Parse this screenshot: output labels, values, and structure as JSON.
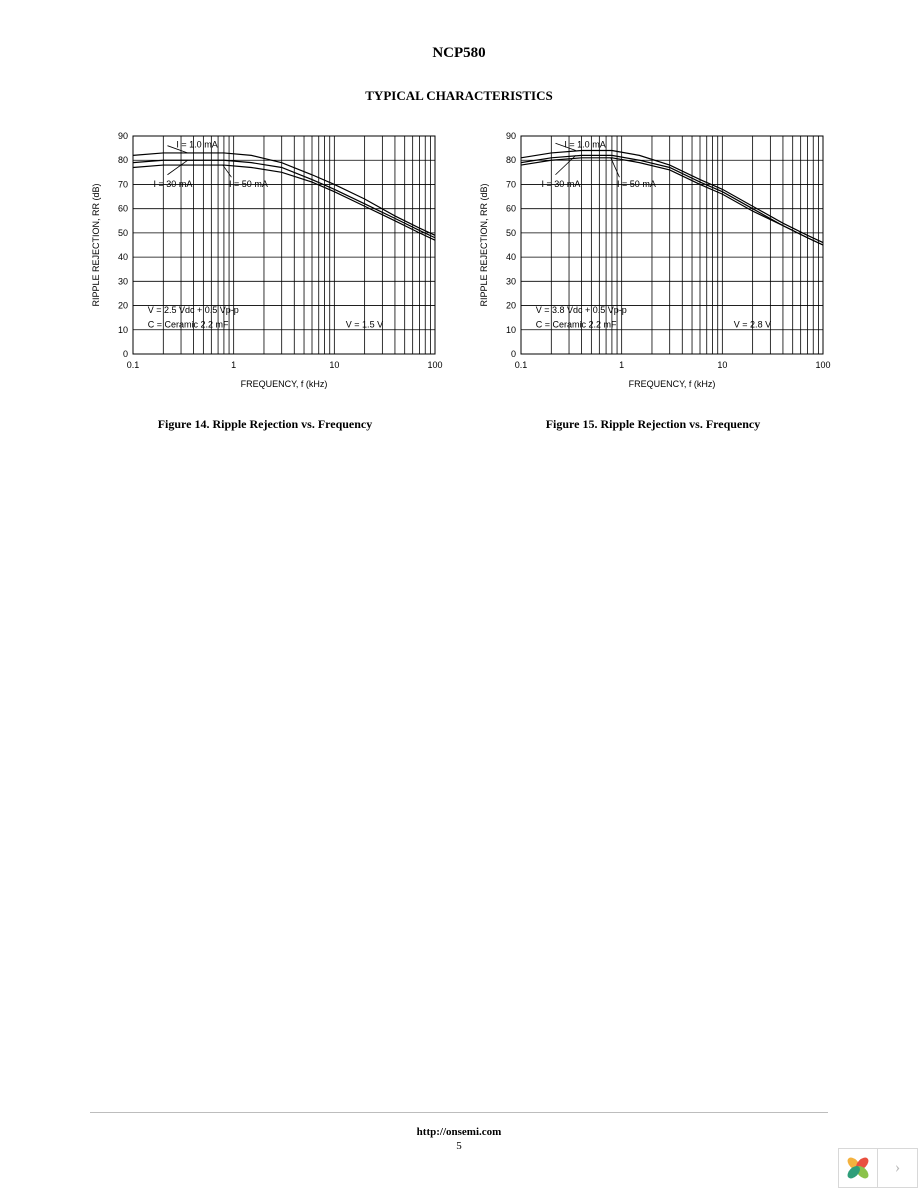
{
  "doc_title": "NCP580",
  "section_title": "TYPICAL CHARACTERISTICS",
  "footer_url": "http://onsemi.com",
  "page_number": "5",
  "chart_common": {
    "y_label": "RIPPLE REJECTION, RR (dB)",
    "x_label": "FREQUENCY, f (kHz)",
    "y_min": 0,
    "y_max": 90,
    "y_step": 10,
    "x_ticks": [
      0.1,
      1,
      10,
      100
    ],
    "x_tick_labels": [
      "0.1",
      "1",
      "10",
      "100"
    ],
    "x_log_minors": [
      2,
      3,
      4,
      5,
      6,
      7,
      8,
      9
    ],
    "axis_color": "#000000",
    "grid_color": "#000000",
    "line_color": "#000000",
    "grid_stroke": 0.8,
    "border_stroke": 1.0,
    "curve_stroke": 1.2,
    "text_color": "#000000",
    "tick_fontsize": 9,
    "axis_label_fontsize": 9,
    "annot_fontsize": 9
  },
  "charts": [
    {
      "caption": "Figure 14. Ripple Rejection vs. Frequency",
      "annot_i1": "I      = 1.0 mA",
      "annot_i2": "I      = 30 mA",
      "annot_i3": "I      = 50 mA",
      "annot_vin": "V     = 2.5  Vdc + 0.5  Vp-p",
      "annot_cout": "C      = Ceramic 2.2         mF",
      "annot_vout": "V       = 1.5  V",
      "series": [
        {
          "name": "1.0mA",
          "pts": [
            [
              0.1,
              82
            ],
            [
              0.2,
              83
            ],
            [
              0.4,
              83
            ],
            [
              0.8,
              83
            ],
            [
              1.5,
              82
            ],
            [
              3,
              79
            ],
            [
              6,
              74
            ],
            [
              10,
              70
            ],
            [
              20,
              64
            ],
            [
              40,
              57
            ],
            [
              70,
              52
            ],
            [
              100,
              49
            ]
          ]
        },
        {
          "name": "30mA",
          "pts": [
            [
              0.1,
              79
            ],
            [
              0.2,
              80
            ],
            [
              0.4,
              80
            ],
            [
              0.8,
              80
            ],
            [
              1.5,
              79
            ],
            [
              3,
              77
            ],
            [
              6,
              72
            ],
            [
              10,
              68
            ],
            [
              20,
              62
            ],
            [
              40,
              56
            ],
            [
              70,
              51
            ],
            [
              100,
              48
            ]
          ]
        },
        {
          "name": "50mA",
          "pts": [
            [
              0.1,
              77
            ],
            [
              0.2,
              78
            ],
            [
              0.4,
              78
            ],
            [
              0.8,
              78
            ],
            [
              1.5,
              77
            ],
            [
              3,
              75
            ],
            [
              6,
              71
            ],
            [
              10,
              67
            ],
            [
              20,
              61
            ],
            [
              40,
              55
            ],
            [
              70,
              50
            ],
            [
              100,
              47
            ]
          ]
        }
      ],
      "leaders": [
        {
          "from": [
            0.35,
            83
          ],
          "to": [
            0.22,
            86
          ],
          "label_anchor": "start"
        },
        {
          "from": [
            0.35,
            80
          ],
          "to": [
            0.22,
            74
          ],
          "label_anchor": "start"
        },
        {
          "from": [
            0.78,
            78
          ],
          "to": [
            0.95,
            73
          ],
          "label_anchor": "start"
        }
      ]
    },
    {
      "caption": "Figure 15. Ripple Rejection vs. Frequency",
      "annot_i1": "I      = 1.0 mA",
      "annot_i2": "I      = 30 mA",
      "annot_i3": "I      = 50 mA",
      "annot_vin": "V     = 3.8  Vdc + 0.5  Vp-p",
      "annot_cout": "C      = Ceramic 2.2         mF",
      "annot_vout": "V       = 2.8  V",
      "series": [
        {
          "name": "1.0mA",
          "pts": [
            [
              0.1,
              81
            ],
            [
              0.2,
              83
            ],
            [
              0.4,
              84
            ],
            [
              0.8,
              84
            ],
            [
              1.5,
              82
            ],
            [
              3,
              78
            ],
            [
              6,
              72
            ],
            [
              10,
              68
            ],
            [
              20,
              61
            ],
            [
              40,
              54
            ],
            [
              70,
              49
            ],
            [
              100,
              46
            ]
          ]
        },
        {
          "name": "30mA",
          "pts": [
            [
              0.1,
              79
            ],
            [
              0.2,
              81
            ],
            [
              0.4,
              82
            ],
            [
              0.8,
              82
            ],
            [
              1.5,
              80
            ],
            [
              3,
              77
            ],
            [
              6,
              71
            ],
            [
              10,
              67
            ],
            [
              20,
              60
            ],
            [
              40,
              53
            ],
            [
              70,
              48
            ],
            [
              100,
              45
            ]
          ]
        },
        {
          "name": "50mA",
          "pts": [
            [
              0.1,
              78
            ],
            [
              0.2,
              80
            ],
            [
              0.4,
              81
            ],
            [
              0.8,
              81
            ],
            [
              1.5,
              79
            ],
            [
              3,
              76
            ],
            [
              6,
              70
            ],
            [
              10,
              66
            ],
            [
              20,
              59
            ],
            [
              40,
              53
            ],
            [
              70,
              48
            ],
            [
              100,
              45
            ]
          ]
        }
      ],
      "leaders": [
        {
          "from": [
            0.35,
            84
          ],
          "to": [
            0.22,
            87
          ],
          "label_anchor": "start"
        },
        {
          "from": [
            0.35,
            82
          ],
          "to": [
            0.22,
            74
          ],
          "label_anchor": "start"
        },
        {
          "from": [
            0.78,
            81
          ],
          "to": [
            0.95,
            73
          ],
          "label_anchor": "start"
        }
      ]
    }
  ],
  "nav": {
    "next_glyph": "›",
    "logo_colors": [
      "#f4b23f",
      "#e94f3f",
      "#8bc24a",
      "#2f9e7a"
    ]
  }
}
